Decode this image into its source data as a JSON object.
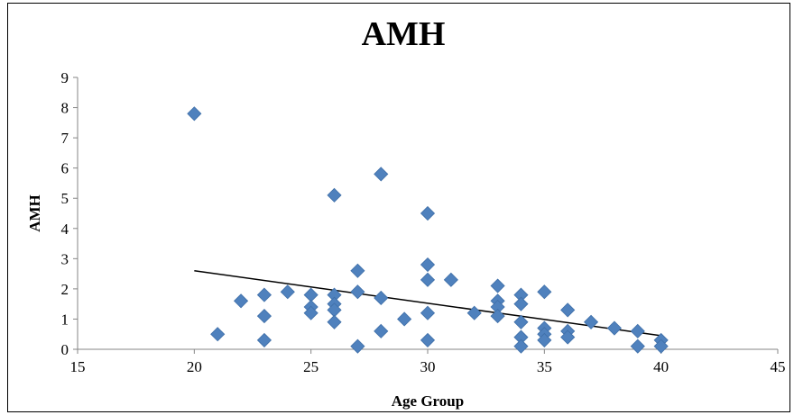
{
  "chart_data": {
    "type": "scatter",
    "title": "AMH",
    "xlabel": "Age Group",
    "ylabel": "AMH",
    "xlim": [
      15,
      45
    ],
    "ylim": [
      0,
      9
    ],
    "x_ticks": [
      "15",
      "20",
      "25",
      "30",
      "35",
      "40",
      "45"
    ],
    "y_ticks": [
      "0",
      "1",
      "2",
      "3",
      "4",
      "5",
      "6",
      "7",
      "8",
      "9"
    ],
    "grid": false,
    "legend": "none",
    "marker_color": "#4F81BD",
    "series": [
      {
        "points": [
          [
            20,
            7.8
          ],
          [
            21,
            0.5
          ],
          [
            22,
            1.6
          ],
          [
            23,
            1.8
          ],
          [
            23,
            1.1
          ],
          [
            23,
            0.3
          ],
          [
            24,
            1.9
          ],
          [
            25,
            1.8
          ],
          [
            25,
            1.4
          ],
          [
            25,
            1.2
          ],
          [
            26,
            5.1
          ],
          [
            26,
            1.8
          ],
          [
            26,
            1.5
          ],
          [
            26,
            1.3
          ],
          [
            26,
            0.9
          ],
          [
            27,
            2.6
          ],
          [
            27,
            1.9
          ],
          [
            27,
            0.1
          ],
          [
            28,
            5.8
          ],
          [
            28,
            1.7
          ],
          [
            28,
            0.6
          ],
          [
            29,
            1.0
          ],
          [
            30,
            4.5
          ],
          [
            30,
            2.8
          ],
          [
            30,
            2.3
          ],
          [
            30,
            1.2
          ],
          [
            30,
            0.3
          ],
          [
            31,
            2.3
          ],
          [
            32,
            1.2
          ],
          [
            33,
            2.1
          ],
          [
            33,
            1.6
          ],
          [
            33,
            1.4
          ],
          [
            33,
            1.1
          ],
          [
            34,
            1.8
          ],
          [
            34,
            1.5
          ],
          [
            34,
            0.9
          ],
          [
            34,
            0.4
          ],
          [
            34,
            0.1
          ],
          [
            35,
            1.9
          ],
          [
            35,
            0.7
          ],
          [
            35,
            0.5
          ],
          [
            35,
            0.3
          ],
          [
            36,
            1.3
          ],
          [
            36,
            0.6
          ],
          [
            36,
            0.4
          ],
          [
            37,
            0.9
          ],
          [
            38,
            0.7
          ],
          [
            39,
            0.6
          ],
          [
            39,
            0.1
          ],
          [
            40,
            0.3
          ],
          [
            40,
            0.1
          ]
        ]
      }
    ],
    "trendline": {
      "type": "linear",
      "from": [
        20,
        2.6
      ],
      "to": [
        40,
        0.45
      ],
      "color": "#000000"
    }
  }
}
